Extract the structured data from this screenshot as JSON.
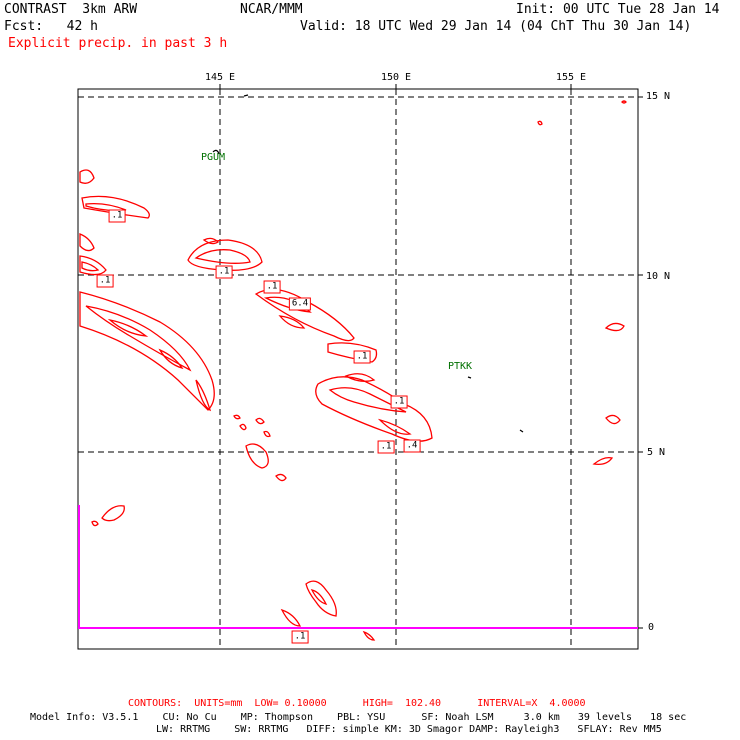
{
  "header": {
    "title_left": "CONTRAST  3km ARW",
    "title_center": "NCAR/MMM",
    "init": "Init: 00 UTC Tue 28 Jan 14",
    "fcst": "Fcst:   42 h",
    "valid": "Valid: 18 UTC Wed 29 Jan 14 (04 ChT Thu 30 Jan 14)",
    "field": "Explicit precip. in past 3 h"
  },
  "map": {
    "lon_labels": [
      "145 E",
      "150 E",
      "155 E"
    ],
    "lat_labels": [
      "15 N",
      "10 N",
      "5 N",
      "0"
    ],
    "stations": [
      "PGUM",
      "PTKK"
    ],
    "contour_labels": [
      ".1",
      ".1",
      "6.4",
      ".1",
      ".1",
      ".1",
      ".1",
      ".4",
      ".1",
      ".1"
    ],
    "colors": {
      "precip": "#ff0000",
      "station": "#007000",
      "grid": "#000000",
      "equator": "#ff00ff"
    }
  },
  "footer": {
    "contours": "CONTOURS:  UNITS=mm  LOW= 0.10000      HIGH=  102.40      INTERVAL=X  4.0000",
    "model_line1": "Model Info: V3.5.1    CU: No Cu    MP: Thompson    PBL: YSU      SF: Noah LSM     3.0 km   39 levels   18 sec",
    "model_line2": "LW: RRTMG    SW: RRTMG   DIFF: simple KM: 3D Smagor DAMP: Rayleigh3   SFLAY: Rev MM5"
  }
}
